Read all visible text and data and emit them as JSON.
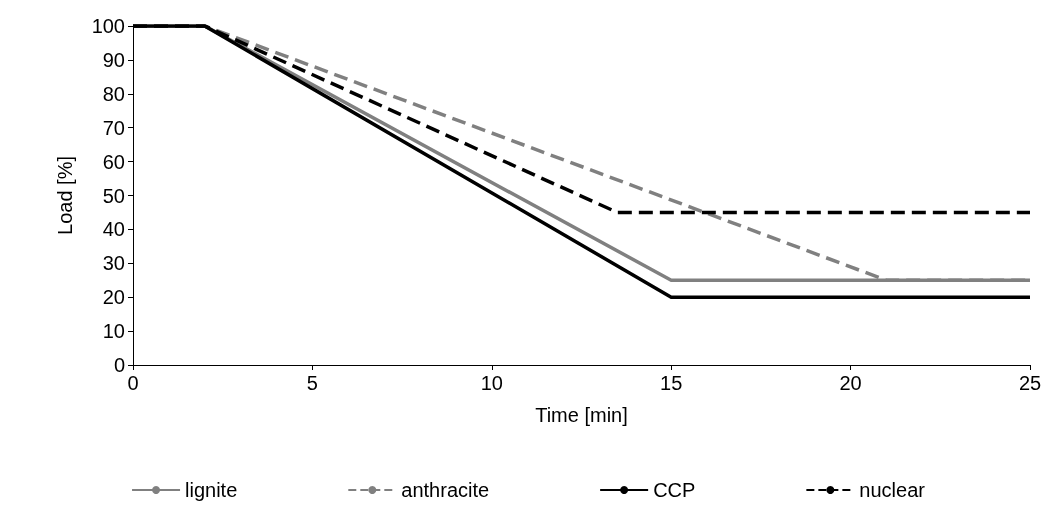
{
  "chart_data": {
    "type": "line",
    "xlabel": "Time [min]",
    "ylabel": "Load [%]",
    "xlim": [
      0,
      25
    ],
    "xticks": [
      0,
      5,
      10,
      15,
      20,
      25
    ],
    "ylim": [
      0,
      100
    ],
    "yticks": [
      0,
      10,
      20,
      30,
      40,
      50,
      60,
      70,
      80,
      90,
      100
    ],
    "grid": false,
    "legend": "bottom",
    "marker": "none",
    "series": [
      {
        "name": "lignite",
        "color": "#808080",
        "line_style": "solid",
        "x": [
          0,
          2,
          15,
          25
        ],
        "values": [
          100,
          100,
          25,
          25
        ]
      },
      {
        "name": "anthracite",
        "color": "#808080",
        "line_style": "dashed",
        "x": [
          0,
          2,
          21,
          25
        ],
        "values": [
          100,
          100,
          25,
          25
        ]
      },
      {
        "name": "CCP",
        "color": "#000000",
        "line_style": "solid",
        "x": [
          0,
          2,
          15,
          25
        ],
        "values": [
          100,
          100,
          20,
          20
        ]
      },
      {
        "name": "nuclear",
        "color": "#000000",
        "line_style": "dashed",
        "x": [
          0,
          2,
          13.5,
          25
        ],
        "values": [
          100,
          100,
          45,
          45
        ]
      }
    ]
  }
}
